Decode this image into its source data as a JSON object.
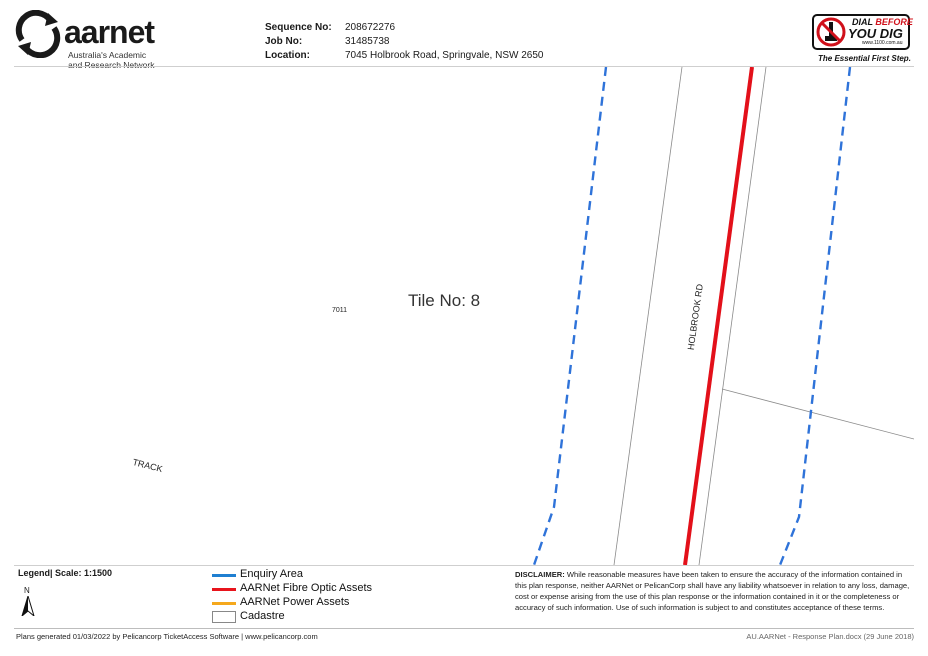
{
  "header": {
    "logo_word": "aarnet",
    "logo_sub_line1": "Australia's Academic",
    "logo_sub_line2": "and Research Network",
    "sequence_label": "Sequence No:",
    "sequence_value": "208672276",
    "job_label": "Job No:",
    "job_value": "31485738",
    "location_label": "Location:",
    "location_value": "7045 Holbrook Road, Springvale, NSW  2650"
  },
  "dbyd": {
    "line1_a": "DIAL ",
    "line1_b": "BEFORE",
    "line2": "YOU DIG",
    "line3": "www.1100.com.au",
    "tagline": "The Essential First Step."
  },
  "map": {
    "tile_label": "Tile No: 8",
    "parcel_number": "7011",
    "track_label": "TRACK",
    "road_label": "HOLBROOK RD"
  },
  "legend": {
    "title": "Legend",
    "scale": "|   Scale: 1:1500",
    "north": "N",
    "items": [
      {
        "label": "Enquiry Area",
        "color": "#1f7fd1"
      },
      {
        "label": "AARNet Fibre Optic Assets",
        "color": "#e8141c"
      },
      {
        "label": "AARNet Power Assets",
        "color": "#f5a81c"
      },
      {
        "label": "Cadastre",
        "color": "#ffffff"
      }
    ]
  },
  "colors": {
    "enquiry_dash": "#2f73d9",
    "fibre": "#e3101a",
    "cadastre": "#8a8a8a"
  },
  "disclaimer": {
    "heading": "DISCLAIMER:",
    "text": " While reasonable measures have been taken to ensure the accuracy of the information contained in this plan response, neither AARNet or PelicanCorp shall have any liability whatsoever in relation to any loss, damage, cost or expense arising from the use of this plan response or the information contained in it or the completeness or accuracy of such information. Use of such information is subject to and constitutes acceptance of these terms."
  },
  "footer": {
    "left": "Plans generated 01/03/2022 by Pelicancorp TicketAccess Software  |  www.pelicancorp.com",
    "right": "AU.AARNet - Response Plan.docx (29 June 2018)"
  }
}
